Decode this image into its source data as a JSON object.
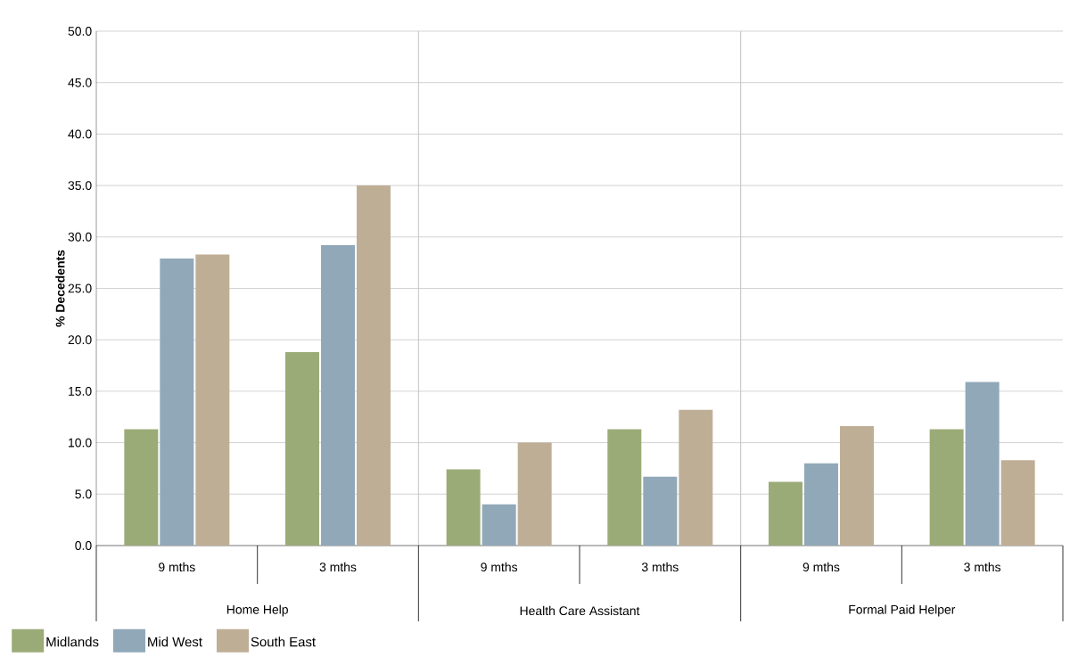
{
  "chart_data": {
    "type": "bar",
    "ylabel": "% Decedents",
    "categories": [
      "9 mths",
      "3 mths",
      "9 mths",
      "3 mths",
      "9 mths",
      "3 mths"
    ],
    "annotations": [
      "Home Help",
      "Health Care Assistant",
      "Formal Paid Helper"
    ],
    "series": [
      {
        "name": "Midlands",
        "color": "#9bab78",
        "values": [
          11.3,
          18.8,
          7.4,
          11.3,
          6.2,
          11.3
        ]
      },
      {
        "name": "Mid West",
        "color": "#91a8b8",
        "values": [
          27.9,
          29.2,
          4.0,
          6.7,
          8.0,
          15.9
        ]
      },
      {
        "name": "South East",
        "color": "#bfae96",
        "values": [
          28.3,
          35.0,
          10.0,
          13.2,
          11.6,
          8.3
        ]
      }
    ],
    "ylim": [
      0,
      50
    ],
    "yticks": [
      {
        "value": 0,
        "label": "0.0"
      },
      {
        "value": 5,
        "label": "5.0"
      },
      {
        "value": 10,
        "label": "10.0"
      },
      {
        "value": 15,
        "label": "15.0"
      },
      {
        "value": 20,
        "label": "20.0"
      },
      {
        "value": 25,
        "label": "25.0"
      },
      {
        "value": 30,
        "label": "30.0"
      },
      {
        "value": 35,
        "label": "35.0"
      },
      {
        "value": 40,
        "label": "40.0"
      },
      {
        "value": 45,
        "label": "45.0"
      },
      {
        "value": 50,
        "label": "50.0"
      }
    ],
    "grid": "y",
    "legend": "bottom left"
  }
}
